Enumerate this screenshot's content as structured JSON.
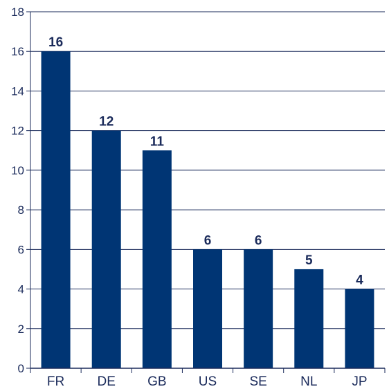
{
  "chart_data": {
    "type": "bar",
    "categories": [
      "FR",
      "DE",
      "GB",
      "US",
      "SE",
      "NL",
      "JP"
    ],
    "values": [
      16,
      12,
      11,
      6,
      6,
      5,
      4
    ],
    "data_labels": [
      "16",
      "12",
      "11",
      "6",
      "6",
      "5",
      "4"
    ],
    "title": "",
    "xlabel": "",
    "ylabel": "",
    "ylim": [
      0,
      18
    ],
    "yticks": [
      0,
      2,
      4,
      6,
      8,
      10,
      12,
      14,
      16,
      18
    ],
    "grid": true,
    "legend": "none",
    "colors": {
      "bar": "#003574",
      "grid": "#1a2a5a",
      "text": "#1a2a5a"
    }
  }
}
